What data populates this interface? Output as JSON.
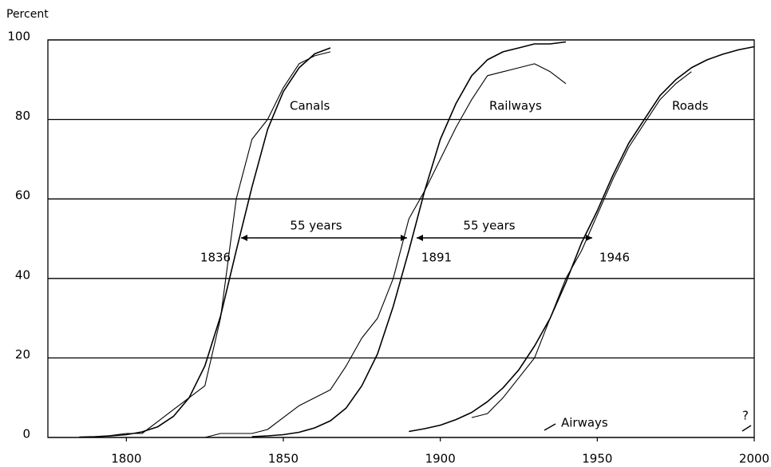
{
  "chart_data": {
    "type": "line",
    "ylabel": "Percent",
    "x": [
      1780,
      1785,
      1790,
      1795,
      1800,
      1805,
      1810,
      1815,
      1820,
      1825,
      1830,
      1835,
      1840,
      1845,
      1850,
      1855,
      1860,
      1865,
      1870,
      1875,
      1880,
      1885,
      1890,
      1895,
      1900,
      1905,
      1910,
      1915,
      1920,
      1925,
      1930,
      1935,
      1940,
      1945,
      1950,
      1955,
      1960,
      1965,
      1970,
      1975,
      1980,
      1985,
      1990,
      1995,
      2000
    ],
    "xlim": [
      1775,
      2000
    ],
    "xticks": [
      1800,
      1850,
      1900,
      1950,
      2000
    ],
    "ylim": [
      0,
      100
    ],
    "yticks": [
      0,
      20,
      40,
      60,
      80,
      100
    ],
    "grid": true,
    "series": [
      {
        "name": "Canals",
        "color": "#000000",
        "values": [
          null,
          0,
          0,
          0.5,
          1,
          1,
          4,
          7,
          10,
          13,
          30,
          60,
          75,
          80,
          88,
          94,
          96,
          97,
          null,
          null,
          null,
          null,
          null,
          null,
          null,
          null,
          null,
          null,
          null,
          null,
          null,
          null,
          null,
          null,
          null,
          null,
          null,
          null,
          null,
          null,
          null,
          null,
          null,
          null,
          null
        ],
        "fit": [
          null,
          0.1,
          0.2,
          0.4,
          0.7,
          1.4,
          2.7,
          5.3,
          10,
          18,
          30.5,
          47,
          63,
          77.5,
          87,
          93,
          96.5,
          98,
          null,
          null,
          null,
          null,
          null,
          null,
          null,
          null,
          null,
          null,
          null,
          null,
          null,
          null,
          null,
          null,
          null,
          null,
          null,
          null,
          null,
          null,
          null,
          null,
          null,
          null,
          null
        ]
      },
      {
        "name": "Railways",
        "color": "#000000",
        "values": [
          null,
          null,
          null,
          null,
          null,
          null,
          null,
          null,
          0,
          0,
          1,
          1,
          1,
          2,
          5,
          8,
          10,
          12,
          18,
          25,
          30,
          40,
          55,
          62,
          70,
          78,
          85,
          91,
          92,
          93,
          94,
          92,
          89,
          null,
          null,
          null,
          null,
          null,
          null,
          null,
          null,
          null,
          null,
          null,
          null
        ],
        "fit": [
          null,
          null,
          null,
          null,
          null,
          null,
          null,
          null,
          null,
          null,
          null,
          null,
          0.2,
          0.4,
          0.7,
          1.3,
          2.4,
          4.2,
          7.4,
          13,
          21,
          33,
          47,
          62,
          75,
          84,
          91,
          95,
          97,
          98,
          99,
          99,
          99.5,
          null,
          null,
          null,
          null,
          null,
          null,
          null,
          null,
          null,
          null,
          null,
          null
        ]
      },
      {
        "name": "Roads",
        "color": "#000000",
        "values": [
          null,
          null,
          null,
          null,
          null,
          null,
          null,
          null,
          null,
          null,
          null,
          null,
          null,
          null,
          null,
          null,
          null,
          null,
          null,
          null,
          null,
          null,
          null,
          null,
          null,
          null,
          5,
          6,
          10,
          15,
          20,
          30,
          40,
          47,
          56,
          65,
          73,
          79,
          85,
          89,
          92,
          null,
          null,
          null,
          null
        ],
        "fit": [
          null,
          null,
          null,
          null,
          null,
          null,
          null,
          null,
          null,
          null,
          null,
          null,
          null,
          null,
          null,
          null,
          null,
          null,
          null,
          null,
          null,
          null,
          1.5,
          2.2,
          3.1,
          4.5,
          6.3,
          9,
          12.5,
          17,
          23,
          30,
          39,
          49,
          57,
          66,
          74,
          80,
          86,
          90,
          93,
          95,
          96.4,
          97.5,
          98.3
        ]
      }
    ],
    "annotations": [
      "55 years",
      "55 years",
      "1836",
      "1891",
      "1946",
      "Airways",
      "?"
    ]
  }
}
